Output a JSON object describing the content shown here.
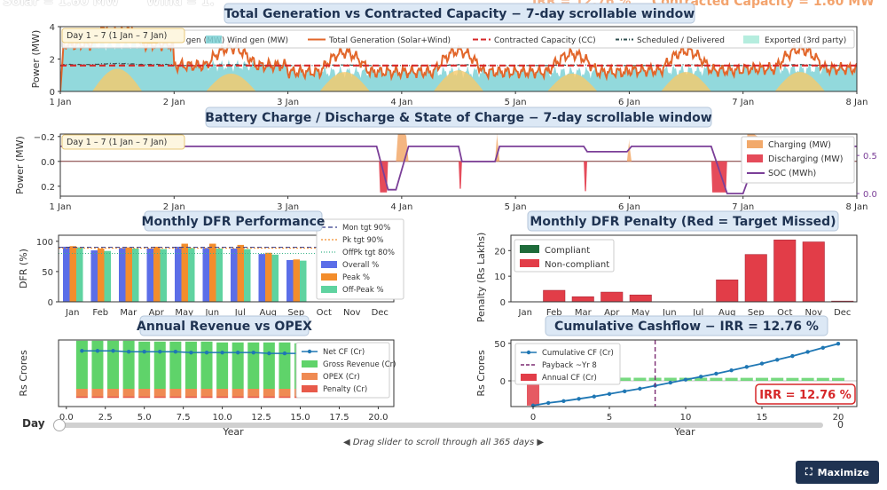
{
  "header": {
    "left_partial": "Solar = 1.60 MW",
    "mid_partial": "Wind = 1.",
    "irr_partial": "IRR = 12.76 %",
    "cc_partial": "Contracted Capacity = 1.60 MW"
  },
  "colors": {
    "solar": "#f6c96a",
    "wind": "#7fd2d6",
    "total": "#e2662a",
    "cc": "#d62728",
    "sched": "#2f4f4f",
    "export": "#a8ead8",
    "charge": "#f2a96b",
    "discharge": "#e54b5a",
    "soc": "#7b3f98",
    "overall": "#5b6ee8",
    "peak": "#f38d2c",
    "offpeak": "#5fd3a0",
    "compliant": "#1e6b3a",
    "noncompliant": "#e23d48",
    "gross": "#5fd36a",
    "opex": "#ef8a52",
    "penalty": "#e85a4a",
    "netcf": "#1f77b4",
    "navy": "#1f3352"
  },
  "chart_data": [
    {
      "id": "gen",
      "type": "area",
      "title": "Total Generation vs Contracted Capacity  −  7-day scrollable window",
      "ylabel": "Power (MW)",
      "ylim": [
        0,
        4
      ],
      "yticks": [
        "0",
        "2",
        "4"
      ],
      "xticks": [
        "1 Jan",
        "2 Jan",
        "3 Jan",
        "4 Jan",
        "5 Jan",
        "6 Jan",
        "7 Jan",
        "8 Jan"
      ],
      "window_label": "Day 1 – 7   (1 Jan – 7 Jan)",
      "legend": [
        "Solar gen (MW)",
        "Wind gen (MW)",
        "Total Generation (Solar+Wind)",
        "Contracted Capacity (CC)",
        "Scheduled / Delivered",
        "Exported (3rd party)"
      ],
      "cc_value": 1.6,
      "days": 7,
      "wind_daily": [
        2.9,
        1.6,
        1.2,
        1.2,
        1.2,
        1.3,
        1.4
      ],
      "solar_peak_daily": [
        1.4,
        1.1,
        1.2,
        1.3,
        1.1,
        1.2,
        1.2
      ]
    },
    {
      "id": "battery",
      "type": "area",
      "title": "Battery Charge / Discharge & State of Charge  −  7-day scrollable window",
      "ylabel": "Power (MW)",
      "ylim": [
        -0.28,
        0.22
      ],
      "yticks": [
        "−0.2",
        "0.0",
        "0.2"
      ],
      "y2ticks": [
        "0.0",
        "0.5"
      ],
      "xticks": [
        "1 Jan",
        "2 Jan",
        "3 Jan",
        "4 Jan",
        "5 Jan",
        "6 Jan",
        "7 Jan",
        "8 Jan"
      ],
      "window_label": "Day 1 – 7   (1 Jan – 7 Jan)",
      "legend": [
        "Charging (MW)",
        "Discharging (MW)",
        "SOC (MWh)"
      ],
      "soc_range": [
        0,
        0.7
      ]
    },
    {
      "id": "dfr",
      "type": "bar",
      "title": "Monthly DFR Performance",
      "ylabel": "DFR (%)",
      "ylim": [
        0,
        110
      ],
      "yticks": [
        "0",
        "50",
        "100"
      ],
      "categories": [
        "Jan",
        "Feb",
        "Mar",
        "Apr",
        "May",
        "Jun",
        "Jul",
        "Aug",
        "Sep",
        "Oct",
        "Nov",
        "Dec"
      ],
      "series": [
        {
          "name": "Overall %",
          "values": [
            91,
            85,
            89,
            88,
            91,
            89,
            88,
            79,
            69,
            0,
            0,
            0
          ]
        },
        {
          "name": "Peak %",
          "values": [
            92,
            88,
            90,
            91,
            96,
            96,
            94,
            81,
            70,
            0,
            0,
            0
          ]
        },
        {
          "name": "Off-Peak %",
          "values": [
            90,
            84,
            88,
            87,
            89,
            88,
            87,
            78,
            68,
            0,
            0,
            0
          ]
        }
      ],
      "targets": [
        {
          "name": "Mon tgt 90%",
          "value": 90
        },
        {
          "name": "Pk tgt 90%",
          "value": 90
        },
        {
          "name": "OffPk tgt 80%",
          "value": 80
        }
      ]
    },
    {
      "id": "penalty",
      "type": "bar",
      "title": "Monthly DFR Penalty  (Red = Target Missed)",
      "ylabel": "Penalty (Rs Lakhs)",
      "ylim": [
        0,
        26
      ],
      "yticks": [
        "0",
        "10",
        "20"
      ],
      "categories": [
        "Jan",
        "Feb",
        "Mar",
        "Apr",
        "May",
        "Jun",
        "Jul",
        "Aug",
        "Sep",
        "Oct",
        "Nov",
        "Dec"
      ],
      "values": [
        0,
        4.5,
        2.0,
        3.8,
        2.7,
        0,
        0,
        8.6,
        18.5,
        24.2,
        23.4,
        0.3
      ],
      "legend": [
        "Compliant",
        "Non-compliant"
      ]
    },
    {
      "id": "revenue",
      "type": "bar",
      "title": "Annual Revenue vs OPEX",
      "ylabel": "Rs Crores",
      "xlabel": "Year",
      "xlim": [
        -0.5,
        21
      ],
      "xticks": [
        "0.0",
        "2.5",
        "5.0",
        "7.5",
        "10.0",
        "12.5",
        "15.0",
        "17.5",
        "20.0"
      ],
      "years": [
        1,
        2,
        3,
        4,
        5,
        6,
        7,
        8,
        9,
        10,
        11,
        12,
        13,
        14,
        15,
        16,
        17,
        18,
        19,
        20
      ],
      "gross": [
        5.7,
        5.7,
        5.7,
        5.7,
        5.6,
        5.6,
        5.6,
        5.6,
        5.6,
        5.5,
        5.5,
        5.5,
        5.5,
        5.5,
        5.4,
        5.4,
        5.4,
        5.4,
        5.4,
        5.3
      ],
      "opex": [
        0.9,
        0.9,
        0.9,
        0.9,
        0.9,
        0.9,
        0.9,
        0.9,
        0.9,
        0.9,
        0.9,
        0.9,
        0.9,
        0.9,
        0.9,
        0.9,
        0.9,
        0.9,
        0.9,
        0.9
      ],
      "penalty_vals": [
        0.9,
        0.9,
        0.9,
        0.9,
        0.9,
        0.9,
        0.9,
        0.9,
        0.9,
        0.9,
        0.9,
        0.9,
        0.9,
        0.9,
        0.9,
        0.9,
        0.9,
        0.9,
        0.9,
        0.9
      ],
      "net": [
        4.5,
        4.5,
        4.5,
        4.4,
        4.4,
        4.4,
        4.4,
        4.3,
        4.3,
        4.3,
        4.3,
        4.3,
        4.2,
        4.2,
        4.2,
        4.2,
        4.1,
        4.1,
        4.1,
        4.1
      ],
      "legend": [
        "Net CF (Cr)",
        "Gross Revenue (Cr)",
        "OPEX (Cr)",
        "Penalty (Cr)"
      ]
    },
    {
      "id": "cashflow",
      "type": "line",
      "title": "Cumulative Cashflow  −  IRR = 12.76 %",
      "ylabel": "Rs Crores",
      "xlabel": "Year",
      "xticks": [
        "0",
        "5",
        "10",
        "15",
        "20"
      ],
      "yticks": [
        "0",
        "50"
      ],
      "x": [
        0,
        1,
        2,
        3,
        4,
        5,
        6,
        7,
        8,
        9,
        10,
        11,
        12,
        13,
        14,
        15,
        16,
        17,
        18,
        19,
        20
      ],
      "cumulative": [
        -33,
        -29.5,
        -27,
        -24,
        -21,
        -17.5,
        -14,
        -10.5,
        -6.5,
        -2.5,
        1.5,
        5.5,
        9.5,
        14,
        18.5,
        23,
        28,
        33,
        38.5,
        44,
        49.5
      ],
      "annual": [
        -33,
        4.2,
        4.2,
        4.2,
        4.2,
        4.2,
        4.2,
        4.1,
        4.1,
        4.1,
        4.1,
        4.1,
        4.0,
        4.0,
        4.0,
        4.0,
        4.0,
        3.9,
        3.9,
        3.9,
        3.9
      ],
      "payback": 8,
      "irr_badge": "IRR = 12.76 %",
      "legend": [
        "Cumulative CF (Cr)",
        "Payback ~Yr 8",
        "Annual CF (Cr)"
      ]
    }
  ],
  "controls": {
    "day_label": "Day",
    "slider_value": "0",
    "slider_level": 0,
    "hint": "◀  Drag slider to scroll through all 365 days  ▶",
    "maximize_label": "Maximize"
  }
}
